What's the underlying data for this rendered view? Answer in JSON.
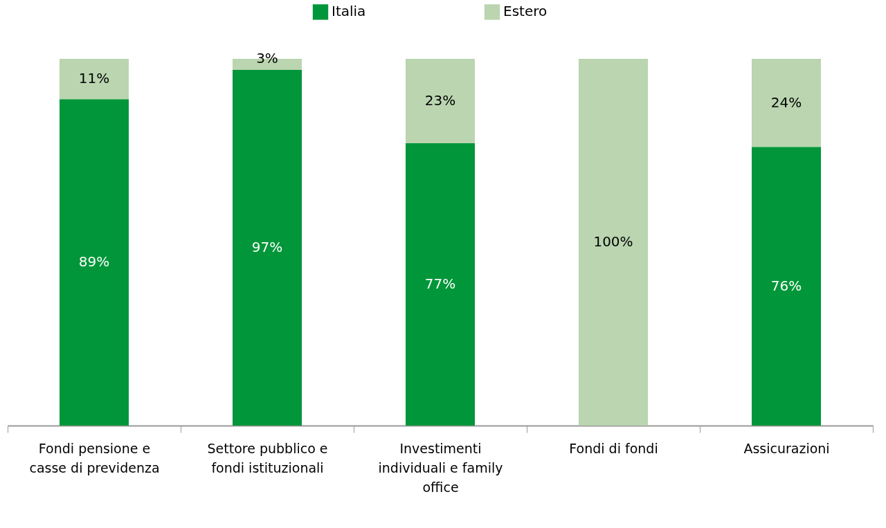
{
  "chart_data": {
    "type": "bar",
    "stacked": true,
    "categories": [
      "Fondi pensione e casse di previdenza",
      "Settore pubblico e fondi istituzionali",
      "Investimenti individuali e family office",
      "Fondi di fondi",
      "Assicurazioni"
    ],
    "series": [
      {
        "name": "Italia",
        "color": "#009639",
        "values": [
          89,
          97,
          77,
          0,
          76
        ],
        "value_labels": [
          "89%",
          "97%",
          "77%",
          null,
          "76%"
        ]
      },
      {
        "name": "Estero",
        "color": "#bad5b0",
        "values": [
          11,
          3,
          23,
          100,
          24
        ],
        "value_labels": [
          "11%",
          "3%",
          "23%",
          "100%",
          "24%"
        ]
      }
    ],
    "ylim": [
      0,
      100
    ],
    "tick_labels": "x",
    "legend": "top"
  }
}
